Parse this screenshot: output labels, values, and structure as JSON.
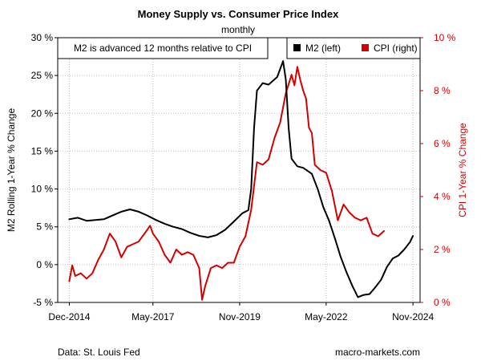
{
  "chart_data": {
    "type": "line",
    "title": "Money Supply vs. Consumer Price Index",
    "subtitle": "monthly",
    "annotation": "M2 is advanced 12 months relative to CPI",
    "ylabel_left": "M2 Rolling 1-Year % Change",
    "ylabel_right": "CPI 1-Year % Change",
    "footer_left": "Data: St. Louis Fed",
    "footer_right": "macro-markets.com",
    "grid": true,
    "legend_position": "top-right",
    "x_ticks": [
      {
        "date": "2014-12-01",
        "label": "Dec-2014"
      },
      {
        "date": "2017-05-01",
        "label": "May-2017"
      },
      {
        "date": "2019-11-01",
        "label": "Nov-2019"
      },
      {
        "date": "2022-05-01",
        "label": "May-2022"
      },
      {
        "date": "2024-11-01",
        "label": "Nov-2024"
      }
    ],
    "xlim": [
      "2014-08-01",
      "2025-01-15"
    ],
    "ylim_left": [
      -5,
      30
    ],
    "yticks_left": [
      {
        "value": -5,
        "label": "-5 %"
      },
      {
        "value": 0,
        "label": "0 %"
      },
      {
        "value": 5,
        "label": "5 %"
      },
      {
        "value": 10,
        "label": "10 %"
      },
      {
        "value": 15,
        "label": "15 %"
      },
      {
        "value": 20,
        "label": "20 %"
      },
      {
        "value": 25,
        "label": "25 %"
      },
      {
        "value": 30,
        "label": "30 %"
      }
    ],
    "ylim_right": [
      0,
      10
    ],
    "yticks_right": [
      {
        "value": 0,
        "label": "0 %"
      },
      {
        "value": 2,
        "label": "2 %"
      },
      {
        "value": 4,
        "label": "4 %"
      },
      {
        "value": 6,
        "label": "6 %"
      },
      {
        "value": 8,
        "label": "8 %"
      },
      {
        "value": 10,
        "label": "10 %"
      }
    ],
    "series": [
      {
        "name": "M2 (left)",
        "axis": "left",
        "color": "#000000",
        "points": [
          [
            "2014-12-01",
            6.0
          ],
          [
            "2015-03-01",
            6.2
          ],
          [
            "2015-06-01",
            5.8
          ],
          [
            "2015-09-01",
            5.9
          ],
          [
            "2015-12-01",
            6.0
          ],
          [
            "2016-03-01",
            6.5
          ],
          [
            "2016-06-01",
            7.0
          ],
          [
            "2016-09-01",
            7.3
          ],
          [
            "2016-12-01",
            7.0
          ],
          [
            "2017-03-01",
            6.5
          ],
          [
            "2017-06-01",
            5.9
          ],
          [
            "2017-09-01",
            5.4
          ],
          [
            "2017-12-01",
            5.0
          ],
          [
            "2018-03-01",
            4.7
          ],
          [
            "2018-06-01",
            4.2
          ],
          [
            "2018-09-01",
            3.8
          ],
          [
            "2018-12-01",
            3.6
          ],
          [
            "2019-03-01",
            3.9
          ],
          [
            "2019-06-01",
            4.6
          ],
          [
            "2019-09-01",
            5.7
          ],
          [
            "2019-12-01",
            6.8
          ],
          [
            "2020-02-01",
            7.2
          ],
          [
            "2020-03-01",
            10.0
          ],
          [
            "2020-04-01",
            18.0
          ],
          [
            "2020-05-01",
            23.0
          ],
          [
            "2020-07-01",
            24.0
          ],
          [
            "2020-09-01",
            23.8
          ],
          [
            "2020-12-01",
            24.8
          ],
          [
            "2021-02-01",
            26.9
          ],
          [
            "2021-03-01",
            24.5
          ],
          [
            "2021-04-01",
            18.0
          ],
          [
            "2021-05-01",
            14.0
          ],
          [
            "2021-07-01",
            13.0
          ],
          [
            "2021-09-01",
            12.8
          ],
          [
            "2021-12-01",
            12.0
          ],
          [
            "2022-02-01",
            10.0
          ],
          [
            "2022-04-01",
            7.6
          ],
          [
            "2022-06-01",
            5.8
          ],
          [
            "2022-08-01",
            3.5
          ],
          [
            "2022-10-01",
            1.0
          ],
          [
            "2022-12-01",
            -1.0
          ],
          [
            "2023-02-01",
            -2.8
          ],
          [
            "2023-04-01",
            -4.3
          ],
          [
            "2023-06-01",
            -4.0
          ],
          [
            "2023-08-01",
            -3.9
          ],
          [
            "2023-10-01",
            -3.0
          ],
          [
            "2023-12-01",
            -2.0
          ],
          [
            "2024-02-01",
            -0.3
          ],
          [
            "2024-04-01",
            0.8
          ],
          [
            "2024-06-01",
            1.2
          ],
          [
            "2024-08-01",
            2.0
          ],
          [
            "2024-10-01",
            3.0
          ],
          [
            "2024-11-01",
            3.8
          ]
        ]
      },
      {
        "name": "CPI (right)",
        "axis": "right",
        "color": "#d40000",
        "points": [
          [
            "2014-12-01",
            0.8
          ],
          [
            "2015-01-01",
            1.4
          ],
          [
            "2015-02-01",
            1.0
          ],
          [
            "2015-04-01",
            1.1
          ],
          [
            "2015-06-01",
            0.9
          ],
          [
            "2015-08-01",
            1.1
          ],
          [
            "2015-10-01",
            1.6
          ],
          [
            "2015-12-01",
            2.0
          ],
          [
            "2016-02-01",
            2.6
          ],
          [
            "2016-04-01",
            2.3
          ],
          [
            "2016-06-01",
            1.7
          ],
          [
            "2016-08-01",
            2.1
          ],
          [
            "2016-10-01",
            2.2
          ],
          [
            "2016-12-01",
            2.3
          ],
          [
            "2017-02-01",
            2.6
          ],
          [
            "2017-04-01",
            2.9
          ],
          [
            "2017-05-01",
            2.6
          ],
          [
            "2017-07-01",
            2.3
          ],
          [
            "2017-09-01",
            1.8
          ],
          [
            "2017-11-01",
            1.5
          ],
          [
            "2018-01-01",
            2.0
          ],
          [
            "2018-03-01",
            1.8
          ],
          [
            "2018-05-01",
            1.9
          ],
          [
            "2018-07-01",
            1.8
          ],
          [
            "2018-09-01",
            1.3
          ],
          [
            "2018-10-01",
            0.1
          ],
          [
            "2018-11-01",
            0.6
          ],
          [
            "2019-01-01",
            1.3
          ],
          [
            "2019-03-01",
            1.4
          ],
          [
            "2019-05-01",
            1.3
          ],
          [
            "2019-07-01",
            1.5
          ],
          [
            "2019-09-01",
            1.5
          ],
          [
            "2019-11-01",
            2.1
          ],
          [
            "2020-01-01",
            2.5
          ],
          [
            "2020-03-01",
            3.5
          ],
          [
            "2020-05-01",
            5.3
          ],
          [
            "2020-07-01",
            5.2
          ],
          [
            "2020-09-01",
            5.4
          ],
          [
            "2020-11-01",
            6.2
          ],
          [
            "2021-01-01",
            6.8
          ],
          [
            "2021-03-01",
            7.9
          ],
          [
            "2021-05-01",
            8.6
          ],
          [
            "2021-06-01",
            8.2
          ],
          [
            "2021-07-01",
            8.9
          ],
          [
            "2021-08-01",
            8.4
          ],
          [
            "2021-09-01",
            8.0
          ],
          [
            "2021-10-01",
            7.7
          ],
          [
            "2021-11-01",
            6.6
          ],
          [
            "2021-12-01",
            6.4
          ],
          [
            "2022-01-01",
            5.2
          ],
          [
            "2022-03-01",
            5.0
          ],
          [
            "2022-05-01",
            4.9
          ],
          [
            "2022-07-01",
            4.2
          ],
          [
            "2022-09-01",
            3.1
          ],
          [
            "2022-11-01",
            3.7
          ],
          [
            "2023-01-01",
            3.4
          ],
          [
            "2023-03-01",
            3.2
          ],
          [
            "2023-05-01",
            3.1
          ],
          [
            "2023-07-01",
            3.2
          ],
          [
            "2023-09-01",
            2.6
          ],
          [
            "2023-11-01",
            2.5
          ],
          [
            "2024-01-01",
            2.7
          ]
        ]
      }
    ]
  }
}
